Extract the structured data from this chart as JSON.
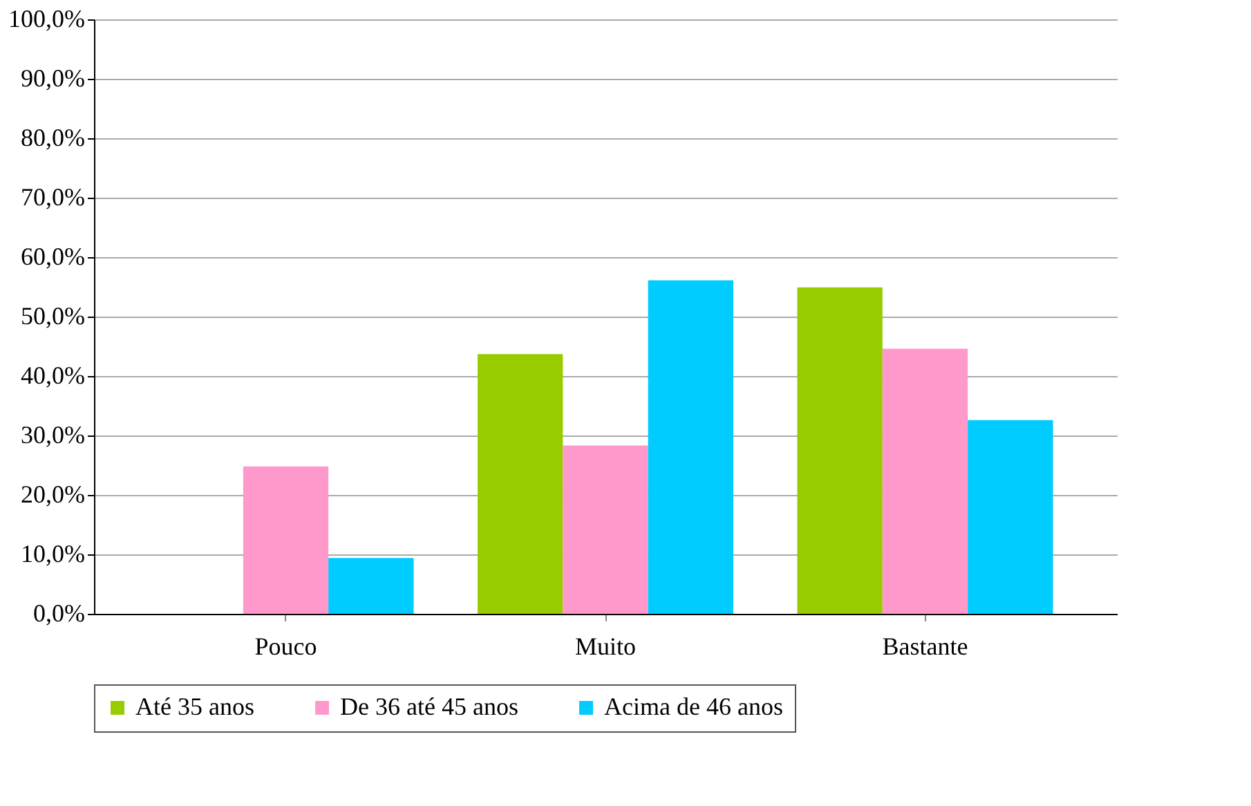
{
  "chart_data": {
    "type": "bar",
    "categories": [
      "Pouco",
      "Muito",
      "Bastante"
    ],
    "series": [
      {
        "name": "Até 35 anos",
        "color": "#99cc00",
        "values": [
          0,
          43.7,
          54.9
        ]
      },
      {
        "name": "De 36 até 45 anos",
        "color": "#ff99cc",
        "values": [
          24.8,
          28.3,
          44.6
        ]
      },
      {
        "name": "Acima de 46 anos",
        "color": "#00ccff",
        "values": [
          9.4,
          56.1,
          32.6
        ]
      }
    ],
    "ylim": [
      0,
      100
    ],
    "yticks": [
      {
        "value": 0,
        "label": "0,0%"
      },
      {
        "value": 10,
        "label": "10,0%"
      },
      {
        "value": 20,
        "label": "20,0%"
      },
      {
        "value": 30,
        "label": "30,0%"
      },
      {
        "value": 40,
        "label": "40,0%"
      },
      {
        "value": 50,
        "label": "50,0%"
      },
      {
        "value": 60,
        "label": "60,0%"
      },
      {
        "value": 70,
        "label": "70,0%"
      },
      {
        "value": 80,
        "label": "80,0%"
      },
      {
        "value": 90,
        "label": "90,0%"
      },
      {
        "value": 100,
        "label": "100,0%"
      }
    ],
    "grid": "y",
    "legend": "bottom"
  }
}
